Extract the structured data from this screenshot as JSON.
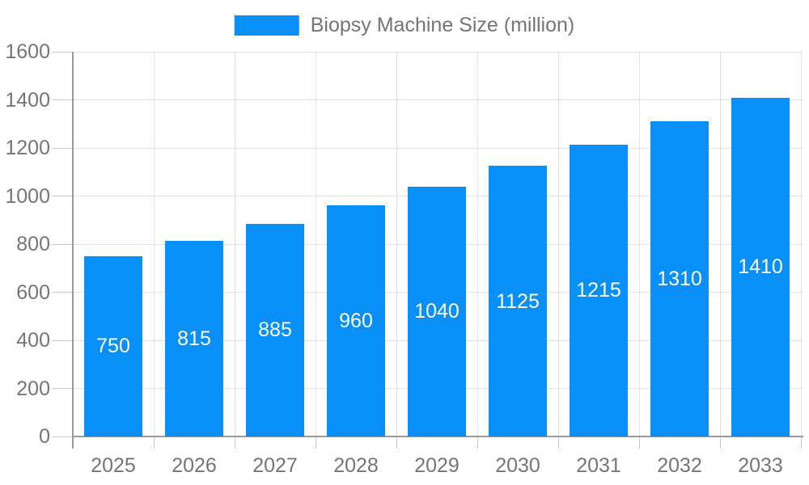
{
  "chart_data": {
    "type": "bar",
    "title": "Biopsy Machine Size (million)",
    "categories": [
      "2025",
      "2026",
      "2027",
      "2028",
      "2029",
      "2030",
      "2031",
      "2032",
      "2033"
    ],
    "values": [
      750,
      815,
      885,
      960,
      1040,
      1125,
      1215,
      1310,
      1410
    ],
    "xlabel": "",
    "ylabel": "",
    "ylim": [
      0,
      1600
    ],
    "ytick_interval": 200,
    "grid": true,
    "legend_position": "top",
    "colors": {
      "bar": "#0990f8",
      "value_label": "#ffffff",
      "axis_text": "#757575",
      "axis_line": "#9a9a9a",
      "tick": "#c8c8c8",
      "gridline": "#e2e2e2",
      "background": "#ffffff"
    }
  }
}
